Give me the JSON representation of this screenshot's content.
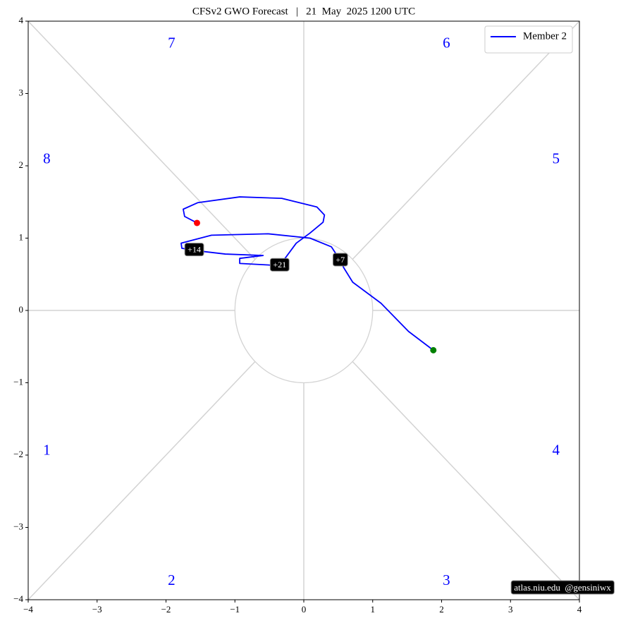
{
  "chart_data": {
    "type": "line",
    "title": "CFSv2 GWO Forecast   |   21  May  2025 1200 UTC",
    "series": [
      {
        "name": "Member 2",
        "color": "#0000ff",
        "x": [
          1.88,
          1.52,
          1.12,
          0.71,
          0.58,
          0.53,
          0.4,
          0.09,
          -0.52,
          -1.34,
          -1.78,
          -1.77,
          -1.59,
          -1.14,
          -0.59,
          -0.93,
          -0.93,
          -0.35,
          -0.11,
          0.09,
          0.28,
          0.3,
          0.19,
          -0.32,
          -0.93,
          -1.54,
          -1.75,
          -1.73,
          -1.55
        ],
        "y": [
          -0.55,
          -0.29,
          0.1,
          0.39,
          0.59,
          0.69,
          0.88,
          1.0,
          1.06,
          1.04,
          0.93,
          0.86,
          0.83,
          0.78,
          0.76,
          0.72,
          0.65,
          0.62,
          0.93,
          1.07,
          1.22,
          1.32,
          1.43,
          1.55,
          1.57,
          1.49,
          1.4,
          1.3,
          1.21
        ]
      }
    ],
    "start_color": "#008000",
    "end_color": "#ff0000",
    "annotations": [
      {
        "text": "+7",
        "x": 0.53,
        "y": 0.69
      },
      {
        "text": "+14",
        "x": -1.59,
        "y": 0.83
      },
      {
        "text": "+21",
        "x": -0.35,
        "y": 0.62
      }
    ],
    "phase_labels": [
      {
        "text": "1",
        "x": -3.73,
        "y": -1.95
      },
      {
        "text": "2",
        "x": -1.92,
        "y": -3.75
      },
      {
        "text": "3",
        "x": 2.07,
        "y": -3.75
      },
      {
        "text": "4",
        "x": 3.66,
        "y": -1.95
      },
      {
        "text": "5",
        "x": 3.66,
        "y": 2.08
      },
      {
        "text": "6",
        "x": 2.07,
        "y": 3.68
      },
      {
        "text": "7",
        "x": -1.92,
        "y": 3.68
      },
      {
        "text": "8",
        "x": -3.73,
        "y": 2.08
      }
    ],
    "phase_color": "#0000ff",
    "xlim": [
      -4,
      4
    ],
    "ylim": [
      -4,
      4
    ],
    "xticks": [
      {
        "value": -4,
        "label": "−4"
      },
      {
        "value": -3,
        "label": "−3"
      },
      {
        "value": -2,
        "label": "−2"
      },
      {
        "value": -1,
        "label": "−1"
      },
      0,
      1,
      2,
      3,
      4
    ],
    "yticks": [
      {
        "value": -4,
        "label": "−4"
      },
      {
        "value": -3,
        "label": "−3"
      },
      {
        "value": -2,
        "label": "−2"
      },
      {
        "value": -1,
        "label": "−1"
      },
      0,
      1,
      2,
      3,
      4
    ],
    "legend": "upper right",
    "watermark": "atlas.niu.edu  @gensiniwx"
  }
}
